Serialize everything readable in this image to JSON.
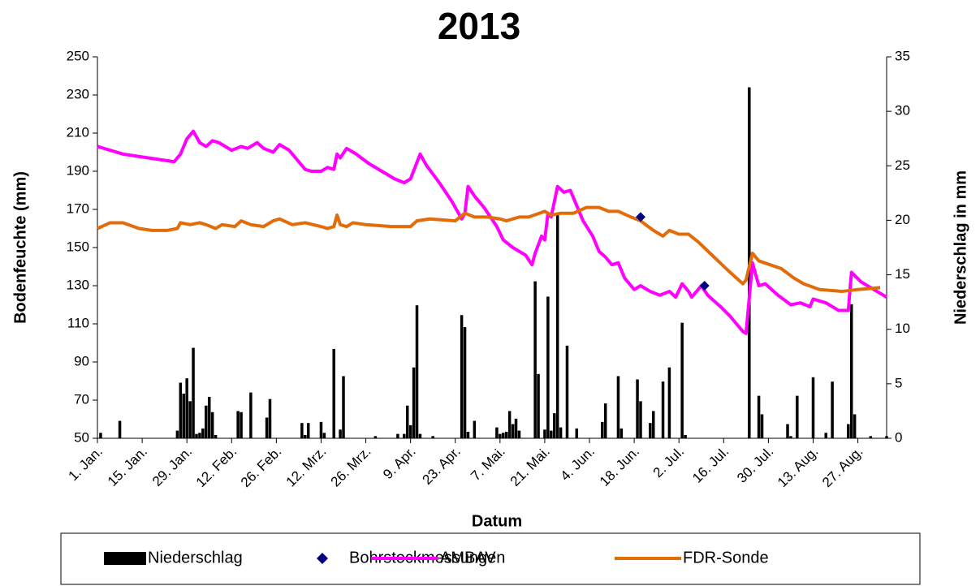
{
  "chart_data": {
    "type": "combo",
    "title": "2013",
    "x_label": "Datum",
    "y_label": "Bodenfeuchte (mm)",
    "y2_label": "Niederschlag in mm",
    "xlim": [
      0,
      247
    ],
    "xticks": [
      {
        "value": 0,
        "label": "1. Jan."
      },
      {
        "value": 14,
        "label": "15. Jan."
      },
      {
        "value": 28,
        "label": "29. Jan."
      },
      {
        "value": 42,
        "label": "12. Feb."
      },
      {
        "value": 56,
        "label": "26. Feb."
      },
      {
        "value": 70,
        "label": "12. Mrz."
      },
      {
        "value": 84,
        "label": "26. Mrz."
      },
      {
        "value": 98,
        "label": "9. Apr."
      },
      {
        "value": 112,
        "label": "23. Apr."
      },
      {
        "value": 126,
        "label": "7. Mai."
      },
      {
        "value": 140,
        "label": "21. Mai."
      },
      {
        "value": 154,
        "label": "4. Jun."
      },
      {
        "value": 168,
        "label": "18. Jun."
      },
      {
        "value": 182,
        "label": "2. Jul."
      },
      {
        "value": 196,
        "label": "16. Jul."
      },
      {
        "value": 210,
        "label": "30. Jul."
      },
      {
        "value": 224,
        "label": "13. Aug."
      },
      {
        "value": 238,
        "label": "27. Aug."
      }
    ],
    "ylim": [
      50,
      250
    ],
    "yticks": [
      50,
      70,
      90,
      110,
      130,
      150,
      170,
      190,
      210,
      230,
      250
    ],
    "y2lim": [
      0,
      35
    ],
    "y2ticks": [
      0,
      5,
      10,
      15,
      20,
      25,
      30,
      35
    ],
    "grid": false,
    "legend": "bottom",
    "series": [
      {
        "name": "Niederschlag",
        "type": "bar",
        "axis": "y2",
        "color": "#000000",
        "x": [
          1,
          7,
          25,
          26,
          27,
          28,
          29,
          30,
          31,
          32,
          33,
          34,
          35,
          36,
          37,
          44,
          45,
          48,
          53,
          54,
          64,
          65,
          66,
          70,
          71,
          74,
          76,
          77,
          87,
          94,
          96,
          97,
          98,
          99,
          100,
          101,
          105,
          114,
          115,
          116,
          118,
          125,
          126,
          127,
          128,
          129,
          130,
          131,
          132,
          137,
          138,
          140,
          141,
          142,
          143,
          144,
          145,
          147,
          150,
          158,
          159,
          163,
          164,
          169,
          170,
          173,
          174,
          177,
          179,
          183,
          184,
          204,
          207,
          208,
          216,
          217,
          219,
          224,
          228,
          230,
          235,
          236,
          237,
          242,
          247
        ],
        "values": [
          0.5,
          1.6,
          0.7,
          5.1,
          4.1,
          5.5,
          3.4,
          8.3,
          0.4,
          0.5,
          0.9,
          3.0,
          3.8,
          2.4,
          0.3,
          2.5,
          2.4,
          4.2,
          1.9,
          3.6,
          1.4,
          0.3,
          1.4,
          1.5,
          0.5,
          8.2,
          0.8,
          5.7,
          0.2,
          0.4,
          0.4,
          3.0,
          1.2,
          6.5,
          12.2,
          0.4,
          0.2,
          11.3,
          10.2,
          0.6,
          1.6,
          1.0,
          0.4,
          0.5,
          0.6,
          2.5,
          1.3,
          1.8,
          0.7,
          14.4,
          5.9,
          0.8,
          13.0,
          0.7,
          2.3,
          20.7,
          1.0,
          8.5,
          0.9,
          1.5,
          3.2,
          5.7,
          0.9,
          5.4,
          3.4,
          1.4,
          2.5,
          5.2,
          6.5,
          10.6,
          0.3,
          32.2,
          3.9,
          2.2,
          1.3,
          0.2,
          3.9,
          5.6,
          0.5,
          5.2,
          1.3,
          12.3,
          2.2,
          0.2,
          0.2
        ]
      },
      {
        "name": "Bohrstockmessungen",
        "type": "scatter",
        "color": "#000080",
        "x": [
          170,
          190
        ],
        "values": [
          166,
          130
        ]
      },
      {
        "name": "AMBAV",
        "type": "line",
        "color": "#ff00ff",
        "x": [
          0,
          8,
          24,
          26,
          28,
          30,
          32,
          34,
          36,
          38,
          42,
          45,
          47,
          50,
          52,
          55,
          57,
          60,
          63,
          65,
          67,
          70,
          72,
          74,
          75,
          76,
          78,
          81,
          85,
          89,
          93,
          96,
          98,
          101,
          103,
          107,
          111,
          114,
          115,
          116,
          118,
          121,
          125,
          127,
          130,
          134,
          136,
          137,
          139,
          140,
          141,
          142,
          144,
          146,
          148,
          150,
          152,
          155,
          157,
          159,
          161,
          163,
          165,
          168,
          170,
          173,
          176,
          179,
          181,
          183,
          185,
          186,
          189,
          191,
          195,
          198,
          202,
          203,
          205,
          207,
          209,
          213,
          217,
          220,
          223,
          224,
          228,
          232,
          235,
          236,
          239,
          247
        ],
        "values": [
          203,
          199,
          195,
          199,
          207,
          211,
          205,
          203,
          206,
          205,
          201,
          203,
          202,
          205,
          202,
          200,
          204,
          201,
          195,
          191,
          190,
          190,
          192,
          191,
          199,
          197,
          202,
          199,
          194,
          190,
          186,
          184,
          186,
          199,
          193,
          184,
          174,
          165,
          168,
          182,
          177,
          171,
          161,
          154,
          150,
          146,
          141,
          147,
          156,
          154,
          168,
          166,
          182,
          179,
          180,
          172,
          164,
          156,
          148,
          145,
          141,
          142,
          134,
          128,
          130,
          127,
          125,
          127,
          124,
          131,
          127,
          124,
          130,
          125,
          119,
          114,
          106,
          105,
          142,
          130,
          131,
          125,
          120,
          121,
          119,
          123,
          121,
          117,
          117,
          137,
          132,
          124
        ]
      },
      {
        "name": "FDR-Sonde",
        "type": "line",
        "color": "#e36c0a",
        "x": [
          0,
          4,
          8,
          13,
          17,
          22,
          25,
          26,
          29,
          32,
          34,
          37,
          39,
          43,
          45,
          48,
          52,
          55,
          57,
          61,
          65,
          70,
          72,
          74,
          75,
          76,
          78,
          80,
          84,
          92,
          98,
          100,
          104,
          112,
          115,
          118,
          122,
          126,
          128,
          132,
          135,
          140,
          142,
          145,
          149,
          153,
          157,
          160,
          163,
          167,
          170,
          174,
          177,
          179,
          182,
          185,
          188,
          193,
          198,
          202,
          203,
          205,
          207,
          214,
          218,
          221,
          226,
          233,
          238,
          245
        ],
        "values": [
          160,
          163,
          163,
          160,
          159,
          159,
          160,
          163,
          162,
          163,
          162,
          160,
          162,
          161,
          164,
          162,
          161,
          164,
          165,
          162,
          163,
          161,
          160,
          161,
          167,
          162,
          161,
          163,
          162,
          161,
          161,
          164,
          165,
          164,
          168,
          166,
          166,
          165,
          164,
          166,
          166,
          169,
          167,
          168,
          168,
          171,
          171,
          169,
          169,
          166,
          164,
          159,
          156,
          159,
          157,
          157,
          153,
          145,
          137,
          131,
          133,
          147,
          143,
          139,
          134,
          131,
          128,
          127,
          128,
          129
        ]
      }
    ]
  }
}
